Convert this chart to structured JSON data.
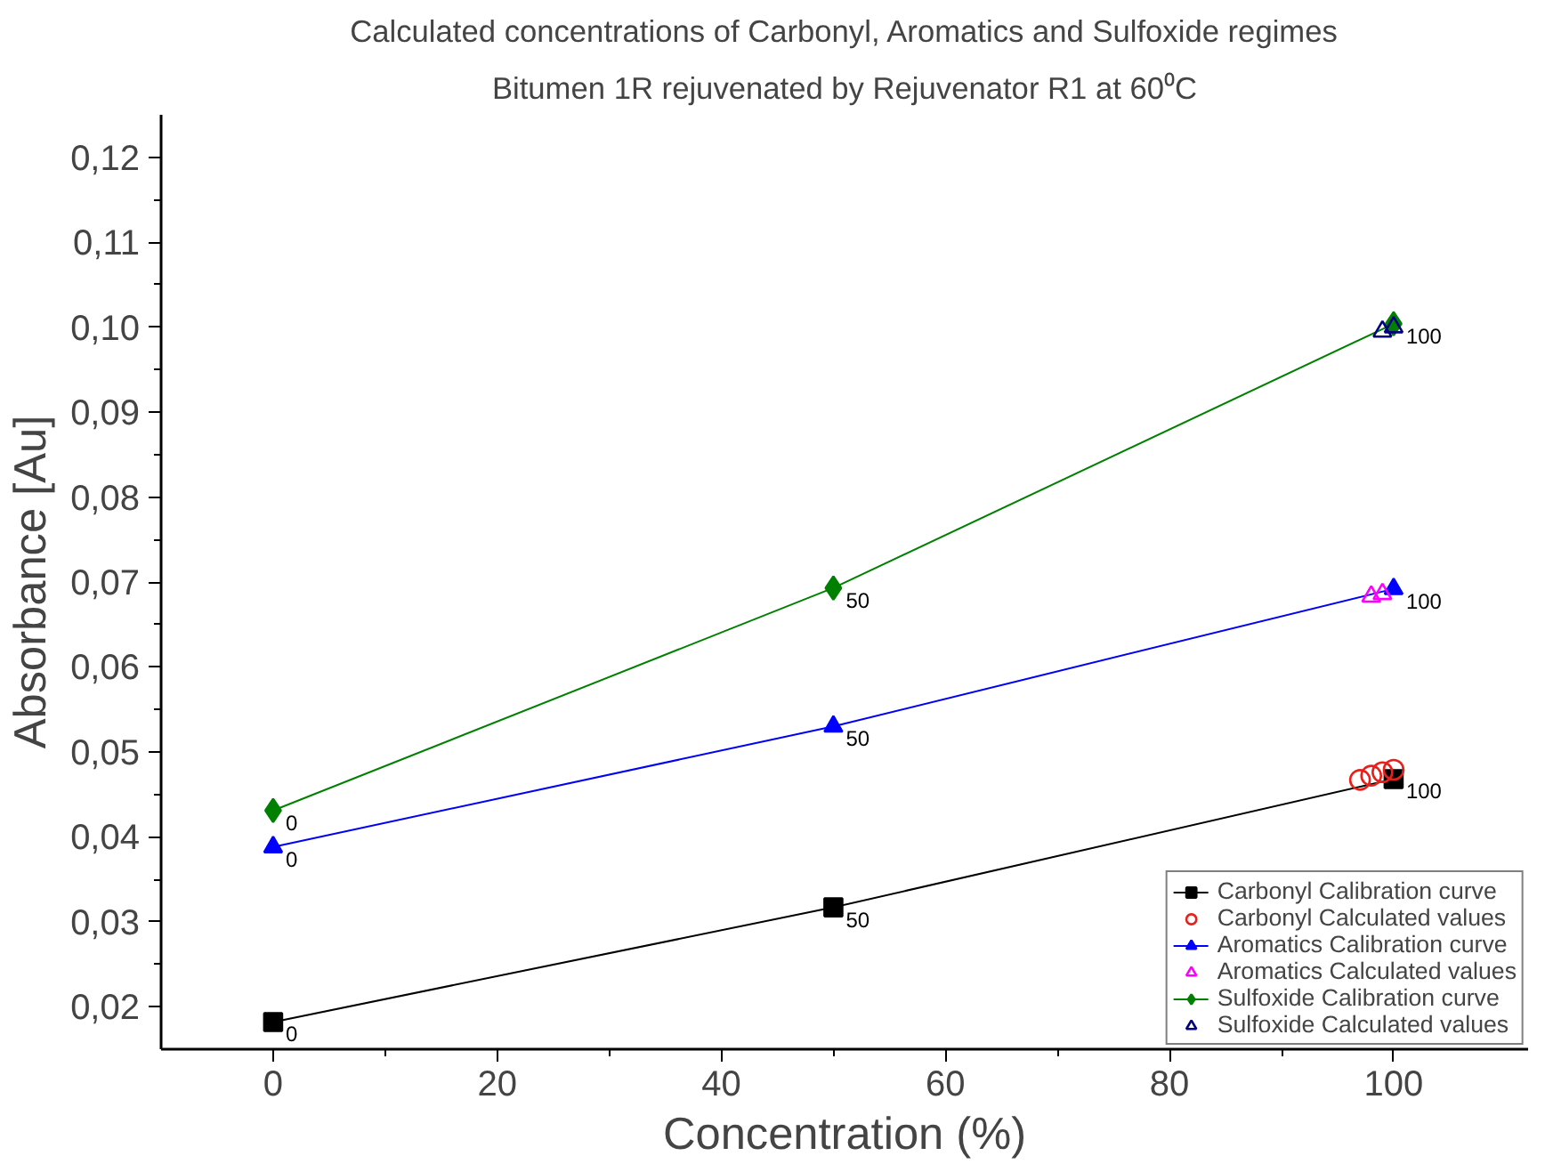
{
  "chart_data": {
    "type": "line",
    "title": "Calculated concentrations of Carbonyl, Aromatics and Sulfoxide regimes",
    "subtitle": "Bitumen 1R rejuvenated by Rejuvenator R1 at 60⁰C",
    "xlabel": "Concentration (%)",
    "ylabel": "Absorbance [Au]",
    "series": [
      {
        "name": "Carbonyl Calibration curve",
        "color": "#000000",
        "marker": "square",
        "x": [
          0,
          50,
          100
        ],
        "values": [
          0.0182,
          0.0317,
          0.0468
        ]
      },
      {
        "name": "Carbonyl Calculated values",
        "type": "scatter",
        "color": "#e8201c",
        "marker": "circle",
        "x": [
          97,
          98,
          99,
          100
        ],
        "values": [
          0.0467,
          0.0472,
          0.0476,
          0.0479
        ]
      },
      {
        "name": "Aromatics Calibration curve",
        "color": "#0000ff",
        "marker": "triangle",
        "x": [
          0,
          50,
          100
        ],
        "values": [
          0.0388,
          0.053,
          0.0692
        ]
      },
      {
        "name": "Aromatics Calculated values",
        "type": "scatter",
        "color": "#ff00ff",
        "marker": "triangle",
        "x": [
          98,
          99
        ],
        "values": [
          0.0683,
          0.0686
        ]
      },
      {
        "name": "Sulfoxide Calibration curve",
        "color": "#008000",
        "marker": "diamond",
        "x": [
          0,
          50,
          100
        ],
        "values": [
          0.0431,
          0.0693,
          0.1004
        ]
      },
      {
        "name": "Sulfoxide Calculated values",
        "type": "scatter",
        "color": "#000080",
        "marker": "triangle",
        "x": [
          99,
          100
        ],
        "values": [
          0.0995,
          0.1
        ]
      }
    ],
    "annotations": [
      {
        "text": "0",
        "x": 0,
        "y": 0.0182
      },
      {
        "text": "50",
        "x": 50,
        "y": 0.0317
      },
      {
        "text": "100",
        "x": 100,
        "y": 0.0468
      },
      {
        "text": "0",
        "x": 0,
        "y": 0.0388
      },
      {
        "text": "50",
        "x": 50,
        "y": 0.053
      },
      {
        "text": "100",
        "x": 100,
        "y": 0.0692
      },
      {
        "text": "0",
        "x": 0,
        "y": 0.0431
      },
      {
        "text": "50",
        "x": 50,
        "y": 0.0693
      },
      {
        "text": "100",
        "x": 100,
        "y": 0.1004
      }
    ],
    "xlim": [
      -10,
      112
    ],
    "ylim": [
      0.015,
      0.125
    ],
    "xticks": [
      0,
      20,
      40,
      60,
      80,
      100
    ],
    "yticks": [
      {
        "value": 0.02,
        "label": "0,02"
      },
      {
        "value": 0.03,
        "label": "0,03"
      },
      {
        "value": 0.04,
        "label": "0,04"
      },
      {
        "value": 0.05,
        "label": "0,05"
      },
      {
        "value": 0.06,
        "label": "0,06"
      },
      {
        "value": 0.07,
        "label": "0,07"
      },
      {
        "value": 0.08,
        "label": "0,08"
      },
      {
        "value": 0.09,
        "label": "0,09"
      },
      {
        "value": 0.1,
        "label": "0,10"
      },
      {
        "value": 0.11,
        "label": "0,11"
      },
      {
        "value": 0.12,
        "label": "0,12"
      }
    ],
    "grid": false,
    "legend": "bottom right"
  }
}
